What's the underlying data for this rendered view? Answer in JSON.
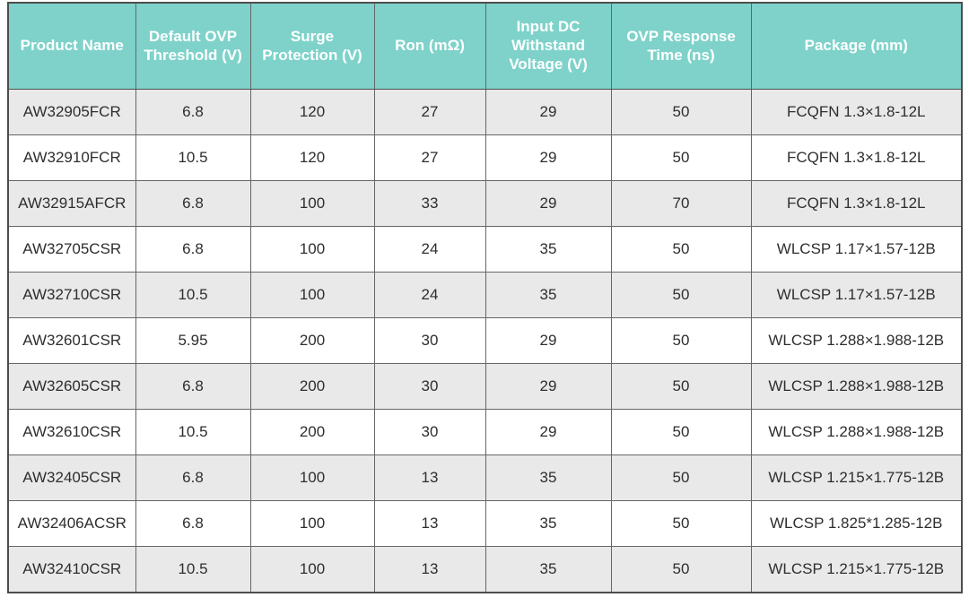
{
  "chart_data": {
    "type": "table",
    "title": "",
    "columns": [
      "Product Name",
      "Default OVP Threshold (V)",
      "Surge Protection (V)",
      "Ron (mΩ)",
      "Input DC Withstand Voltage (V)",
      "OVP Response Time (ns)",
      "Package (mm)"
    ],
    "rows": [
      [
        "AW32905FCR",
        "6.8",
        "120",
        "27",
        "29",
        "50",
        "FCQFN 1.3×1.8-12L"
      ],
      [
        "AW32910FCR",
        "10.5",
        "120",
        "27",
        "29",
        "50",
        "FCQFN 1.3×1.8-12L"
      ],
      [
        "AW32915AFCR",
        "6.8",
        "100",
        "33",
        "29",
        "70",
        "FCQFN 1.3×1.8-12L"
      ],
      [
        "AW32705CSR",
        "6.8",
        "100",
        "24",
        "35",
        "50",
        "WLCSP 1.17×1.57-12B"
      ],
      [
        "AW32710CSR",
        "10.5",
        "100",
        "24",
        "35",
        "50",
        "WLCSP 1.17×1.57-12B"
      ],
      [
        "AW32601CSR",
        "5.95",
        "200",
        "30",
        "29",
        "50",
        "WLCSP 1.288×1.988-12B"
      ],
      [
        "AW32605CSR",
        "6.8",
        "200",
        "30",
        "29",
        "50",
        "WLCSP 1.288×1.988-12B"
      ],
      [
        "AW32610CSR",
        "10.5",
        "200",
        "30",
        "29",
        "50",
        "WLCSP 1.288×1.988-12B"
      ],
      [
        "AW32405CSR",
        "6.8",
        "100",
        "13",
        "35",
        "50",
        "WLCSP 1.215×1.775-12B"
      ],
      [
        "AW32406ACSR",
        "6.8",
        "100",
        "13",
        "35",
        "50",
        "WLCSP 1.825*1.285-12B"
      ],
      [
        "AW32410CSR",
        "10.5",
        "100",
        "13",
        "35",
        "50",
        "WLCSP 1.215×1.775-12B"
      ]
    ],
    "layout": {
      "header_rows": 1,
      "zebra_striping": true,
      "first_data_row_shaded": true,
      "grid": true
    }
  },
  "colors": {
    "header_bg": "#7ed2ca",
    "header_text": "#ffffff",
    "row_bg": "#ffffff",
    "row_alt_bg": "#e9e9e9",
    "body_text": "#2e2e2e",
    "border_inner": "#666666",
    "border_outer": "#4d4d4d"
  }
}
